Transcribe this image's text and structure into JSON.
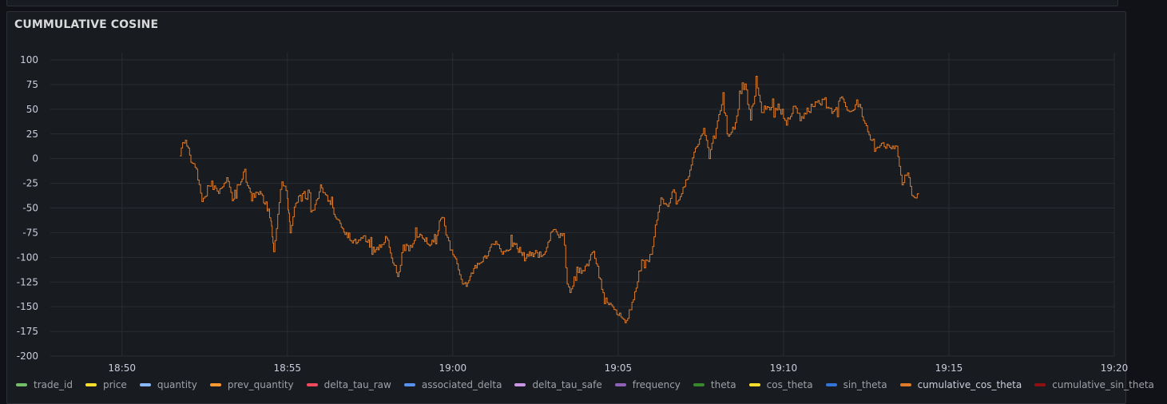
{
  "panel": {
    "title": "CUMMULATIVE COSINE"
  },
  "chart_data": {
    "type": "line",
    "title": "CUMMULATIVE COSINE",
    "x_tick_labels": [
      "18:50",
      "18:55",
      "19:00",
      "19:05",
      "19:10",
      "19:15",
      "19:20"
    ],
    "y_tick_labels": [
      "100",
      "75",
      "50",
      "25",
      "0",
      "-25",
      "-50",
      "-75",
      "-100",
      "-125",
      "-150",
      "-175",
      "-200"
    ],
    "ylim": [
      -200,
      100
    ],
    "xlim": [
      "18:47:50",
      "19:20:00"
    ],
    "grid": true,
    "legend_placement": "bottom-left",
    "series": [
      {
        "name": "cumulative_cos_theta",
        "color": "#e07a27",
        "x": [
          "18:51:45",
          "18:51:55",
          "18:52:05",
          "18:52:15",
          "18:52:25",
          "18:52:40",
          "18:52:55",
          "18:53:10",
          "18:53:20",
          "18:53:40",
          "18:53:55",
          "18:54:10",
          "18:54:30",
          "18:54:35",
          "18:54:50",
          "18:55:00",
          "18:55:05",
          "18:55:15",
          "18:55:30",
          "18:55:45",
          "18:56:00",
          "18:56:20",
          "18:56:40",
          "18:57:00",
          "18:57:20",
          "18:57:40",
          "18:58:00",
          "18:58:20",
          "18:58:30",
          "18:58:45",
          "18:59:00",
          "18:59:20",
          "18:59:40",
          "18:59:55",
          "19:00:05",
          "19:00:20",
          "19:00:40",
          "19:01:00",
          "19:01:15",
          "19:01:30",
          "19:01:50",
          "19:02:10",
          "19:02:30",
          "19:02:45",
          "19:03:00",
          "19:03:10",
          "19:03:20",
          "19:03:30",
          "19:03:45",
          "19:04:00",
          "19:04:15",
          "19:04:30",
          "19:04:45",
          "19:04:55",
          "19:05:05",
          "19:05:15",
          "19:05:30",
          "19:05:45",
          "19:06:00",
          "19:06:10",
          "19:06:20",
          "19:06:30",
          "19:06:40",
          "19:06:50",
          "19:07:05",
          "19:07:20",
          "19:07:35",
          "19:07:45",
          "19:08:00",
          "19:08:10",
          "19:08:20",
          "19:08:30",
          "19:08:40",
          "19:08:50",
          "19:09:00",
          "19:09:10",
          "19:09:20",
          "19:09:35",
          "19:09:50",
          "19:10:05",
          "19:10:20",
          "19:10:30",
          "19:10:45",
          "19:11:00",
          "19:11:15",
          "19:11:30",
          "19:11:45",
          "19:12:00",
          "19:12:15",
          "19:12:30",
          "19:12:45",
          "19:13:00",
          "19:13:15",
          "19:13:25",
          "19:13:35",
          "19:13:45",
          "19:13:55",
          "19:14:05"
        ],
        "values": [
          10,
          20,
          0,
          -10,
          -45,
          -25,
          -35,
          -20,
          -40,
          -15,
          -40,
          -35,
          -60,
          -95,
          -20,
          -40,
          -75,
          -45,
          -30,
          -55,
          -30,
          -50,
          -70,
          -85,
          -80,
          -95,
          -80,
          -120,
          -90,
          -90,
          -75,
          -90,
          -60,
          -90,
          -100,
          -130,
          -110,
          -100,
          -85,
          -95,
          -85,
          -100,
          -95,
          -100,
          -70,
          -80,
          -75,
          -140,
          -115,
          -110,
          -95,
          -130,
          -150,
          -155,
          -160,
          -165,
          -135,
          -100,
          -100,
          -60,
          -40,
          -50,
          -35,
          -45,
          -20,
          10,
          30,
          0,
          40,
          55,
          25,
          30,
          60,
          75,
          40,
          80,
          50,
          50,
          55,
          35,
          55,
          40,
          50,
          55,
          60,
          45,
          65,
          45,
          55,
          35,
          10,
          15,
          10,
          10,
          -25,
          -15,
          -40,
          -35
        ]
      }
    ]
  },
  "legend": [
    {
      "name": "trade_id",
      "color": "#73bf69"
    },
    {
      "name": "price",
      "color": "#fade2a"
    },
    {
      "name": "quantity",
      "color": "#8ab8ff"
    },
    {
      "name": "prev_quantity",
      "color": "#ff9830"
    },
    {
      "name": "delta_tau_raw",
      "color": "#f2495c"
    },
    {
      "name": "associated_delta",
      "color": "#5794f2"
    },
    {
      "name": "delta_tau_safe",
      "color": "#ca95e5"
    },
    {
      "name": "frequency",
      "color": "#8f62b7"
    },
    {
      "name": "theta",
      "color": "#37872d"
    },
    {
      "name": "cos_theta",
      "color": "#fade2a"
    },
    {
      "name": "sin_theta",
      "color": "#3274d9"
    },
    {
      "name": "cumulative_cos_theta",
      "color": "#e07a27"
    },
    {
      "name": "cumulative_sin_theta",
      "color": "#8f1010"
    }
  ]
}
